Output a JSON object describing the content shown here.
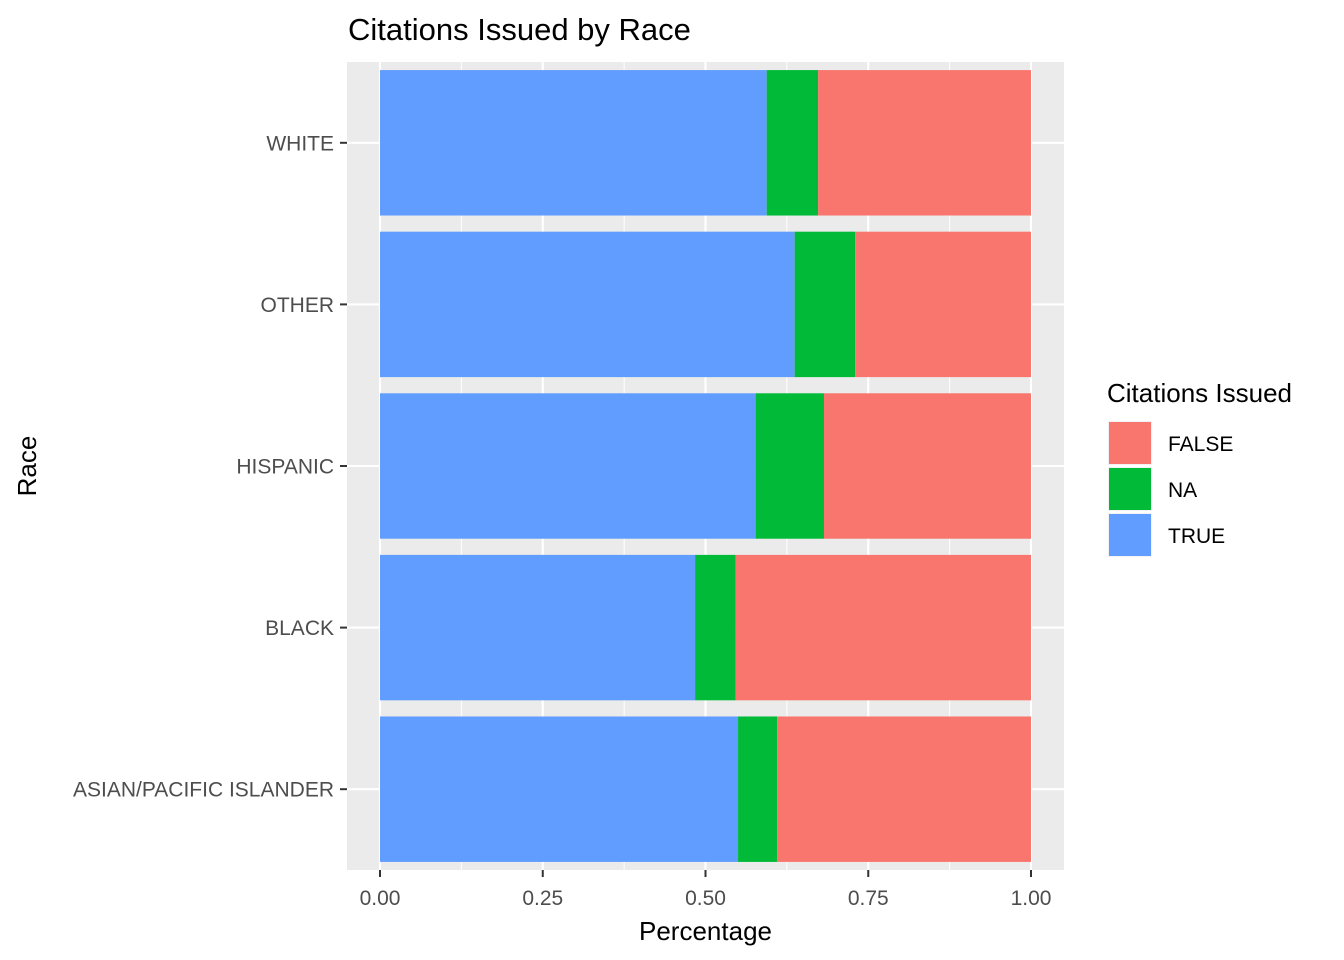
{
  "chart_data": {
    "type": "bar",
    "orientation": "horizontal",
    "stacked": true,
    "title": "Citations Issued by Race",
    "xlabel": "Percentage",
    "ylabel": "Race",
    "xlim": [
      0,
      1
    ],
    "x_ticks": [
      "0.00",
      "0.25",
      "0.50",
      "0.75",
      "1.00"
    ],
    "grid": true,
    "legend_position": "right",
    "legend_title": "Citations Issued",
    "categories": [
      "ASIAN/PACIFIC ISLANDER",
      "BLACK",
      "HISPANIC",
      "OTHER",
      "WHITE"
    ],
    "series": [
      {
        "name": "TRUE",
        "color": "#619CFF",
        "values": [
          0.55,
          0.484,
          0.577,
          0.637,
          0.594
        ]
      },
      {
        "name": "NA",
        "color": "#00BA38",
        "values": [
          0.06,
          0.062,
          0.105,
          0.093,
          0.079
        ]
      },
      {
        "name": "FALSE",
        "color": "#F8766D",
        "values": [
          0.39,
          0.454,
          0.318,
          0.27,
          0.327
        ]
      }
    ],
    "legend_order": [
      "FALSE",
      "NA",
      "TRUE"
    ]
  }
}
